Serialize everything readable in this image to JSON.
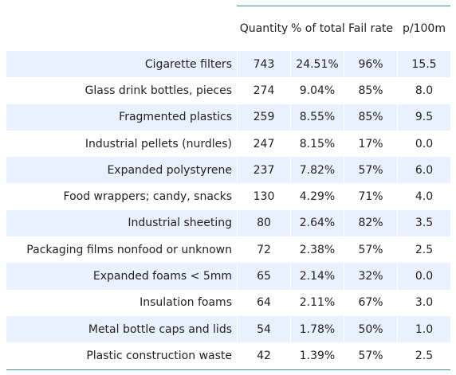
{
  "table": {
    "columns": [
      "Quantity",
      "% of total",
      "Fail rate",
      "p/100m"
    ],
    "rows": [
      {
        "item": "Cigarette filters",
        "quantity": "743",
        "percent": "24.51%",
        "fail_rate": "96%",
        "p100m": "15.5"
      },
      {
        "item": "Glass drink bottles, pieces",
        "quantity": "274",
        "percent": "9.04%",
        "fail_rate": "85%",
        "p100m": "8.0"
      },
      {
        "item": "Fragmented plastics",
        "quantity": "259",
        "percent": "8.55%",
        "fail_rate": "85%",
        "p100m": "9.5"
      },
      {
        "item": "Industrial pellets (nurdles)",
        "quantity": "247",
        "percent": "8.15%",
        "fail_rate": "17%",
        "p100m": "0.0"
      },
      {
        "item": "Expanded polystyrene",
        "quantity": "237",
        "percent": "7.82%",
        "fail_rate": "57%",
        "p100m": "6.0"
      },
      {
        "item": "Food wrappers; candy, snacks",
        "quantity": "130",
        "percent": "4.29%",
        "fail_rate": "71%",
        "p100m": "4.0"
      },
      {
        "item": "Industrial sheeting",
        "quantity": "80",
        "percent": "2.64%",
        "fail_rate": "82%",
        "p100m": "3.5"
      },
      {
        "item": "Packaging films nonfood or unknown",
        "quantity": "72",
        "percent": "2.38%",
        "fail_rate": "57%",
        "p100m": "2.5"
      },
      {
        "item": "Expanded foams < 5mm",
        "quantity": "65",
        "percent": "2.14%",
        "fail_rate": "32%",
        "p100m": "0.0"
      },
      {
        "item": "Insulation foams",
        "quantity": "64",
        "percent": "2.11%",
        "fail_rate": "67%",
        "p100m": "3.0"
      },
      {
        "item": "Metal bottle caps and lids",
        "quantity": "54",
        "percent": "1.78%",
        "fail_rate": "50%",
        "p100m": "1.0"
      },
      {
        "item": "Plastic construction waste",
        "quantity": "42",
        "percent": "1.39%",
        "fail_rate": "57%",
        "p100m": "2.5"
      }
    ]
  },
  "colors": {
    "row_shade": "#e8f1fd",
    "rule": "#3a8fb0",
    "text": "#222222"
  }
}
